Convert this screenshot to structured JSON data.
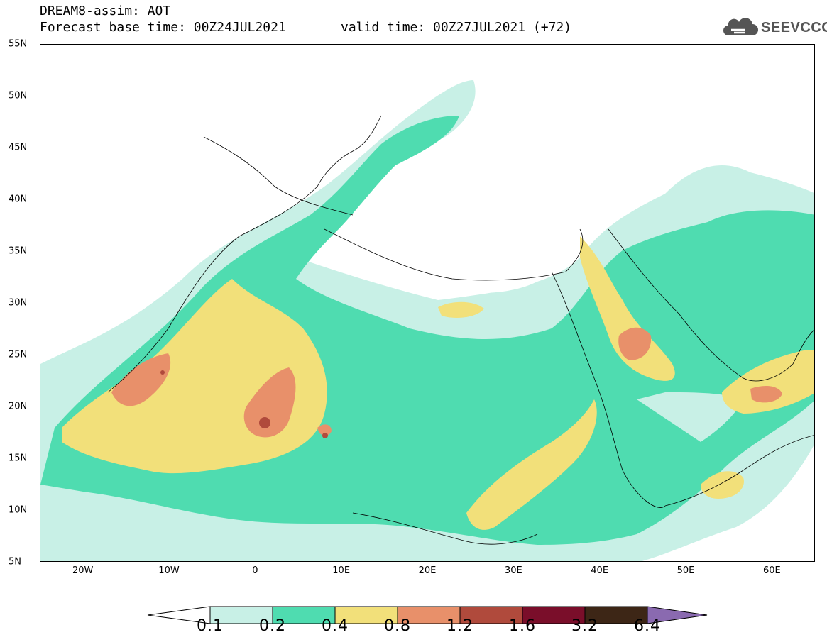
{
  "title": {
    "line1": "DREAM8-assim: AOT",
    "line2": "Forecast base time: 00Z24JUL2021",
    "valid": "valid time: 00Z27JUL2021 (+72)"
  },
  "logo": {
    "text": "SEEVCCC",
    "icon": "cloud-icon"
  },
  "axes": {
    "lat_labels": [
      "55N",
      "50N",
      "45N",
      "40N",
      "35N",
      "30N",
      "25N",
      "20N",
      "15N",
      "10N",
      "5N"
    ],
    "lon_labels": [
      "20W",
      "10W",
      "0",
      "10E",
      "20E",
      "30E",
      "40E",
      "50E",
      "60E"
    ],
    "lat_range": [
      5,
      55
    ],
    "lon_range": [
      -25,
      65
    ]
  },
  "legend": {
    "labels": [
      "0.1",
      "0.2",
      "0.4",
      "0.8",
      "1.2",
      "1.6",
      "3.2",
      "6.4"
    ],
    "colors": [
      "#ffffff",
      "#c8f0e6",
      "#4fdcb0",
      "#f2e07a",
      "#e8906a",
      "#b04a3c",
      "#7a0e2a",
      "#3d2616",
      "#8a6ab0"
    ]
  }
}
